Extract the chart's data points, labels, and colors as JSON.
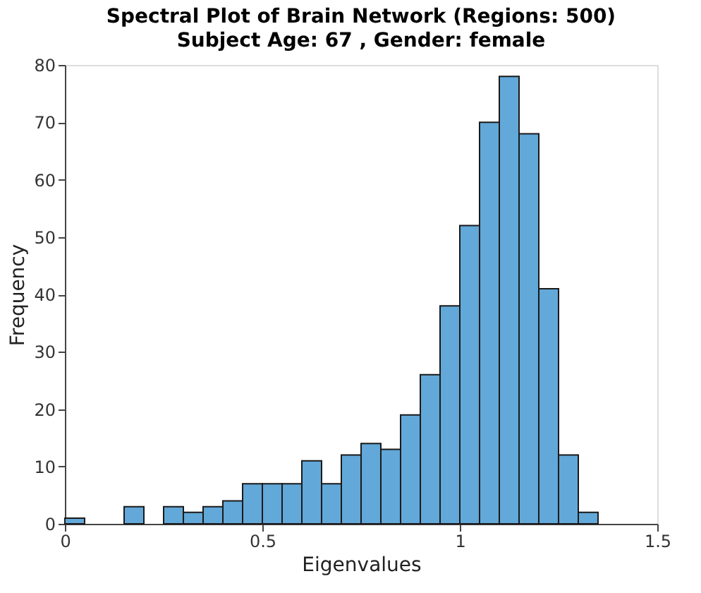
{
  "chart_data": {
    "type": "histogram",
    "title": "Spectral Plot of Brain Network (Regions: 500)",
    "subtitle": "Subject Age: 67 , Gender:  female",
    "xlabel": "Eigenvalues",
    "ylabel": "Frequency",
    "bins": [
      0,
      0.05,
      0.1,
      0.15,
      0.2,
      0.25,
      0.3,
      0.35,
      0.4,
      0.45,
      0.5,
      0.55,
      0.6,
      0.65,
      0.7,
      0.75,
      0.8,
      0.85,
      0.9,
      0.95,
      1.0,
      1.05,
      1.1,
      1.15,
      1.2,
      1.25,
      1.3,
      1.35
    ],
    "values": [
      1,
      0,
      0,
      3,
      0,
      3,
      2,
      3,
      4,
      7,
      7,
      7,
      11,
      7,
      12,
      14,
      13,
      19,
      26,
      38,
      52,
      70,
      78,
      68,
      41,
      12,
      2
    ],
    "color": "#62a8d8",
    "xlim": [
      0,
      1.5
    ],
    "xticks": [
      0,
      0.5,
      1,
      1.5
    ],
    "ylim": [
      0,
      80
    ],
    "yticks": [
      0,
      10,
      20,
      30,
      40,
      50,
      60,
      70,
      80
    ],
    "grid": false
  }
}
